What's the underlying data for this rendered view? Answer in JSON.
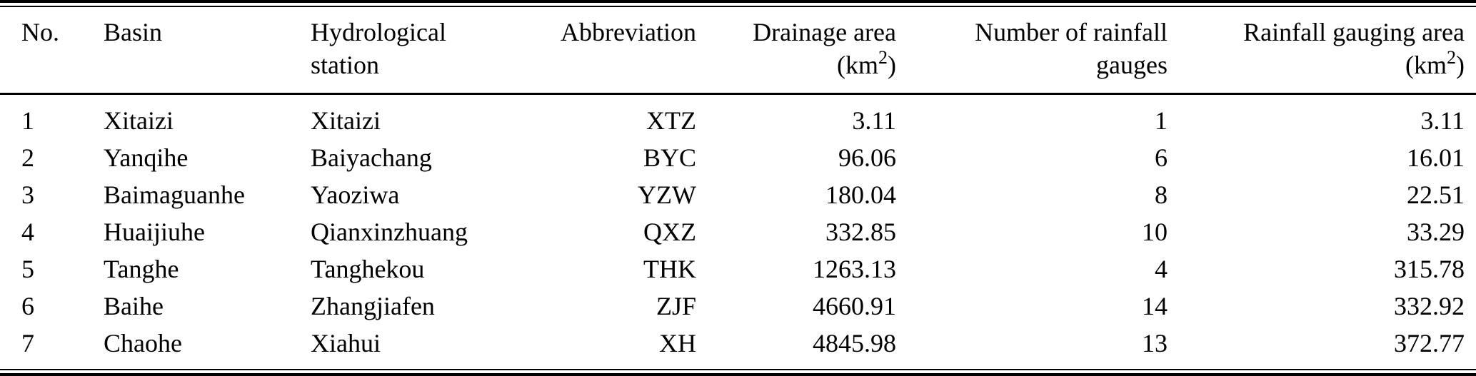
{
  "colors": {
    "text": "#000000",
    "background": "#ffffff",
    "rule": "#000000"
  },
  "table": {
    "headers": {
      "no": {
        "line1": "No."
      },
      "basin": {
        "line1": "Basin"
      },
      "station": {
        "line1": "Hydrological",
        "line2": "station"
      },
      "abbr": {
        "line1": "Abbreviation"
      },
      "drainage": {
        "line1": "Drainage area",
        "unit_open": "(km",
        "unit_sup": "2",
        "unit_close": ")"
      },
      "gauges": {
        "line1": "Number of rainfall",
        "line2": "gauges"
      },
      "gauging": {
        "line1": "Rainfall gauging area",
        "unit_open": "(km",
        "unit_sup": "2",
        "unit_close": ")"
      }
    },
    "rows": [
      {
        "no": "1",
        "basin": "Xitaizi",
        "station": "Xitaizi",
        "abbr": "XTZ",
        "drainage_area": "3.11",
        "gauges": "1",
        "gauging_area": "3.11"
      },
      {
        "no": "2",
        "basin": "Yanqihe",
        "station": "Baiyachang",
        "abbr": "BYC",
        "drainage_area": "96.06",
        "gauges": "6",
        "gauging_area": "16.01"
      },
      {
        "no": "3",
        "basin": "Baimaguanhe",
        "station": "Yaoziwa",
        "abbr": "YZW",
        "drainage_area": "180.04",
        "gauges": "8",
        "gauging_area": "22.51"
      },
      {
        "no": "4",
        "basin": "Huaijiuhe",
        "station": "Qianxinzhuang",
        "abbr": "QXZ",
        "drainage_area": "332.85",
        "gauges": "10",
        "gauging_area": "33.29"
      },
      {
        "no": "5",
        "basin": "Tanghe",
        "station": "Tanghekou",
        "abbr": "THK",
        "drainage_area": "1263.13",
        "gauges": "4",
        "gauging_area": "315.78"
      },
      {
        "no": "6",
        "basin": "Baihe",
        "station": "Zhangjiafen",
        "abbr": "ZJF",
        "drainage_area": "4660.91",
        "gauges": "14",
        "gauging_area": "332.92"
      },
      {
        "no": "7",
        "basin": "Chaohe",
        "station": "Xiahui",
        "abbr": "XH",
        "drainage_area": "4845.98",
        "gauges": "13",
        "gauging_area": "372.77"
      }
    ]
  }
}
